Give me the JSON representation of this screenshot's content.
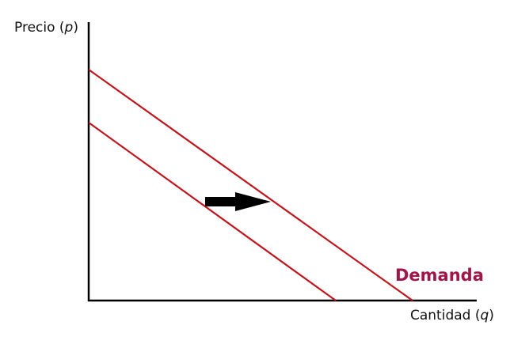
{
  "axes": {
    "y_label": "Precio (",
    "y_var": "p",
    "y_close": ")",
    "x_label": "Cantidad (",
    "x_var": "q",
    "x_close": ")"
  },
  "curves": {
    "demand_label": "Demanda"
  },
  "shift": {
    "direction": "right"
  },
  "colors": {
    "curve": "#c0151c",
    "label": "#a0154a",
    "axis": "#000000",
    "arrow": "#000000"
  }
}
